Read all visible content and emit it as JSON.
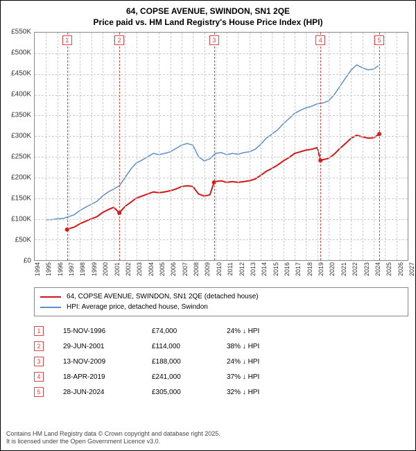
{
  "title": {
    "line1": "64, COPSE AVENUE, SWINDON, SN1 2QE",
    "line2": "Price paid vs. HM Land Registry's House Price Index (HPI)"
  },
  "chart": {
    "ylim": [
      0,
      550000
    ],
    "yticks": [
      0,
      50000,
      100000,
      150000,
      200000,
      250000,
      300000,
      350000,
      400000,
      450000,
      500000,
      550000
    ],
    "ytick_labels": [
      "£0",
      "£50K",
      "£100K",
      "£150K",
      "£200K",
      "£250K",
      "£300K",
      "£350K",
      "£400K",
      "£450K",
      "£500K",
      "£550K"
    ],
    "xlim": [
      1994,
      2027
    ],
    "xticks": [
      1994,
      1995,
      1996,
      1997,
      1998,
      1999,
      2000,
      2001,
      2002,
      2003,
      2004,
      2005,
      2006,
      2007,
      2008,
      2009,
      2010,
      2011,
      2012,
      2013,
      2014,
      2015,
      2016,
      2017,
      2018,
      2019,
      2020,
      2021,
      2022,
      2023,
      2024,
      2025,
      2026,
      2027
    ],
    "background": "#ffffff",
    "grid_color": "#cccccc",
    "series": {
      "hpi": {
        "color": "#5b8fc7",
        "width": 1.5,
        "label": "HPI: Average price, detached house, Swindon",
        "points": [
          [
            1995.0,
            98000
          ],
          [
            1995.5,
            98000
          ],
          [
            1996.0,
            100000
          ],
          [
            1996.5,
            101000
          ],
          [
            1997.0,
            105000
          ],
          [
            1997.5,
            110000
          ],
          [
            1998.0,
            120000
          ],
          [
            1998.5,
            128000
          ],
          [
            1999.0,
            135000
          ],
          [
            1999.5,
            142000
          ],
          [
            2000.0,
            155000
          ],
          [
            2000.5,
            165000
          ],
          [
            2001.0,
            172000
          ],
          [
            2001.5,
            180000
          ],
          [
            2002.0,
            200000
          ],
          [
            2002.5,
            220000
          ],
          [
            2003.0,
            235000
          ],
          [
            2003.5,
            242000
          ],
          [
            2004.0,
            250000
          ],
          [
            2004.5,
            258000
          ],
          [
            2005.0,
            255000
          ],
          [
            2005.5,
            258000
          ],
          [
            2006.0,
            262000
          ],
          [
            2006.5,
            270000
          ],
          [
            2007.0,
            278000
          ],
          [
            2007.5,
            282000
          ],
          [
            2008.0,
            278000
          ],
          [
            2008.5,
            250000
          ],
          [
            2009.0,
            240000
          ],
          [
            2009.5,
            245000
          ],
          [
            2010.0,
            258000
          ],
          [
            2010.5,
            260000
          ],
          [
            2011.0,
            255000
          ],
          [
            2011.5,
            258000
          ],
          [
            2012.0,
            256000
          ],
          [
            2012.5,
            260000
          ],
          [
            2013.0,
            262000
          ],
          [
            2013.5,
            268000
          ],
          [
            2014.0,
            280000
          ],
          [
            2014.5,
            295000
          ],
          [
            2015.0,
            305000
          ],
          [
            2015.5,
            315000
          ],
          [
            2016.0,
            330000
          ],
          [
            2016.5,
            342000
          ],
          [
            2017.0,
            355000
          ],
          [
            2017.5,
            362000
          ],
          [
            2018.0,
            368000
          ],
          [
            2018.5,
            372000
          ],
          [
            2019.0,
            378000
          ],
          [
            2019.5,
            380000
          ],
          [
            2020.0,
            385000
          ],
          [
            2020.5,
            400000
          ],
          [
            2021.0,
            420000
          ],
          [
            2021.5,
            440000
          ],
          [
            2022.0,
            460000
          ],
          [
            2022.5,
            472000
          ],
          [
            2023.0,
            465000
          ],
          [
            2023.5,
            460000
          ],
          [
            2024.0,
            462000
          ],
          [
            2024.4,
            470000
          ]
        ]
      },
      "paid": {
        "color": "#d41515",
        "width": 2,
        "label": "64, COPSE AVENUE, SWINDON, SN1 2QE (detached house)",
        "marker_radius": 3,
        "points": [
          [
            1996.87,
            74000
          ],
          [
            1997.0,
            76000
          ],
          [
            1997.5,
            80000
          ],
          [
            1998.0,
            88000
          ],
          [
            1998.5,
            94000
          ],
          [
            1999.0,
            100000
          ],
          [
            1999.5,
            105000
          ],
          [
            2000.0,
            115000
          ],
          [
            2000.5,
            122000
          ],
          [
            2001.0,
            128000
          ],
          [
            2001.49,
            114000
          ],
          [
            2001.5,
            115000
          ],
          [
            2002.0,
            130000
          ],
          [
            2002.5,
            140000
          ],
          [
            2003.0,
            150000
          ],
          [
            2003.5,
            155000
          ],
          [
            2004.0,
            160000
          ],
          [
            2004.5,
            165000
          ],
          [
            2005.0,
            163000
          ],
          [
            2005.5,
            165000
          ],
          [
            2006.0,
            168000
          ],
          [
            2006.5,
            172000
          ],
          [
            2007.0,
            178000
          ],
          [
            2007.5,
            180000
          ],
          [
            2008.0,
            178000
          ],
          [
            2008.5,
            160000
          ],
          [
            2009.0,
            155000
          ],
          [
            2009.5,
            158000
          ],
          [
            2009.87,
            188000
          ],
          [
            2010.0,
            190000
          ],
          [
            2010.5,
            192000
          ],
          [
            2011.0,
            188000
          ],
          [
            2011.5,
            190000
          ],
          [
            2012.0,
            188000
          ],
          [
            2012.5,
            190000
          ],
          [
            2013.0,
            192000
          ],
          [
            2013.5,
            196000
          ],
          [
            2014.0,
            205000
          ],
          [
            2014.5,
            215000
          ],
          [
            2015.0,
            222000
          ],
          [
            2015.5,
            230000
          ],
          [
            2016.0,
            240000
          ],
          [
            2016.5,
            248000
          ],
          [
            2017.0,
            258000
          ],
          [
            2017.5,
            262000
          ],
          [
            2018.0,
            266000
          ],
          [
            2018.5,
            268000
          ],
          [
            2019.0,
            272000
          ],
          [
            2019.29,
            241000
          ],
          [
            2019.5,
            243000
          ],
          [
            2020.0,
            246000
          ],
          [
            2020.5,
            256000
          ],
          [
            2021.0,
            270000
          ],
          [
            2021.5,
            282000
          ],
          [
            2022.0,
            295000
          ],
          [
            2022.5,
            302000
          ],
          [
            2023.0,
            298000
          ],
          [
            2023.5,
            295000
          ],
          [
            2024.0,
            296000
          ],
          [
            2024.49,
            305000
          ]
        ],
        "markers": [
          [
            1996.87,
            74000
          ],
          [
            2001.49,
            114000
          ],
          [
            2009.87,
            188000
          ],
          [
            2019.29,
            241000
          ],
          [
            2024.49,
            305000
          ]
        ]
      }
    },
    "events": [
      {
        "n": "1",
        "x": 1996.87
      },
      {
        "n": "2",
        "x": 2001.49
      },
      {
        "n": "3",
        "x": 2009.87
      },
      {
        "n": "4",
        "x": 2019.29
      },
      {
        "n": "5",
        "x": 2024.49
      }
    ]
  },
  "legend": {
    "items": [
      {
        "color": "#d41515",
        "label": "64, COPSE AVENUE, SWINDON, SN1 2QE (detached house)"
      },
      {
        "color": "#5b8fc7",
        "label": "HPI: Average price, detached house, Swindon"
      }
    ]
  },
  "event_table": {
    "rows": [
      {
        "n": "1",
        "date": "15-NOV-1996",
        "price": "£74,000",
        "diff": "24% ↓ HPI"
      },
      {
        "n": "2",
        "date": "29-JUN-2001",
        "price": "£114,000",
        "diff": "38% ↓ HPI"
      },
      {
        "n": "3",
        "date": "13-NOV-2009",
        "price": "£188,000",
        "diff": "24% ↓ HPI"
      },
      {
        "n": "4",
        "date": "18-APR-2019",
        "price": "£241,000",
        "diff": "37% ↓ HPI"
      },
      {
        "n": "5",
        "date": "28-JUN-2024",
        "price": "£305,000",
        "diff": "32% ↓ HPI"
      }
    ]
  },
  "footer": {
    "line1": "Contains HM Land Registry data © Crown copyright and database right 2025.",
    "line2": "It is licensed under the Open Government Licence v3.0."
  }
}
